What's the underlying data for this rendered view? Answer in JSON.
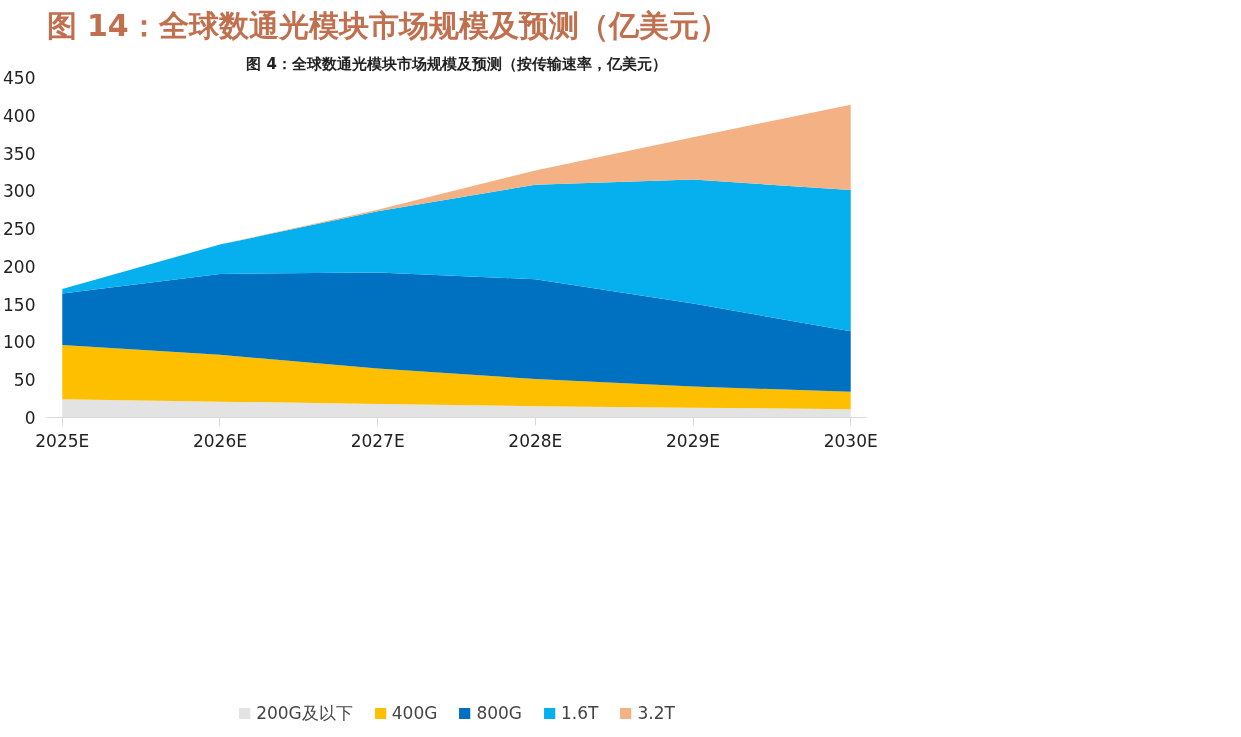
{
  "chart_data": {
    "type": "area",
    "stacked": true,
    "title": "图 14：全球数通光模块市场规模及预测（亿美元）",
    "subtitle": "图 4：全球数通光模块市场规模及预测（按传输速率，亿美元）",
    "categories": [
      "2025E",
      "2026E",
      "2027E",
      "2028E",
      "2029E",
      "2030E"
    ],
    "series": [
      {
        "name": "200G及以下",
        "color": "#e3e3e3",
        "values": [
          24,
          21,
          18,
          15,
          13,
          11
        ]
      },
      {
        "name": "400G",
        "color": "#fdbf00",
        "values": [
          72,
          62,
          47,
          36,
          28,
          23
        ]
      },
      {
        "name": "800G",
        "color": "#0070c0",
        "values": [
          68,
          107,
          127,
          132,
          110,
          80
        ]
      },
      {
        "name": "1.6T",
        "color": "#06b0ee",
        "values": [
          6,
          39,
          81,
          125,
          164,
          187
        ]
      },
      {
        "name": "3.2T",
        "color": "#f4b183",
        "values": [
          0,
          0,
          2,
          19,
          56,
          113
        ]
      }
    ],
    "ylim": [
      0,
      450
    ],
    "yticks": [
      0,
      50,
      100,
      150,
      200,
      250,
      300,
      350,
      400,
      450
    ],
    "grid": false,
    "legend": "bottom"
  }
}
